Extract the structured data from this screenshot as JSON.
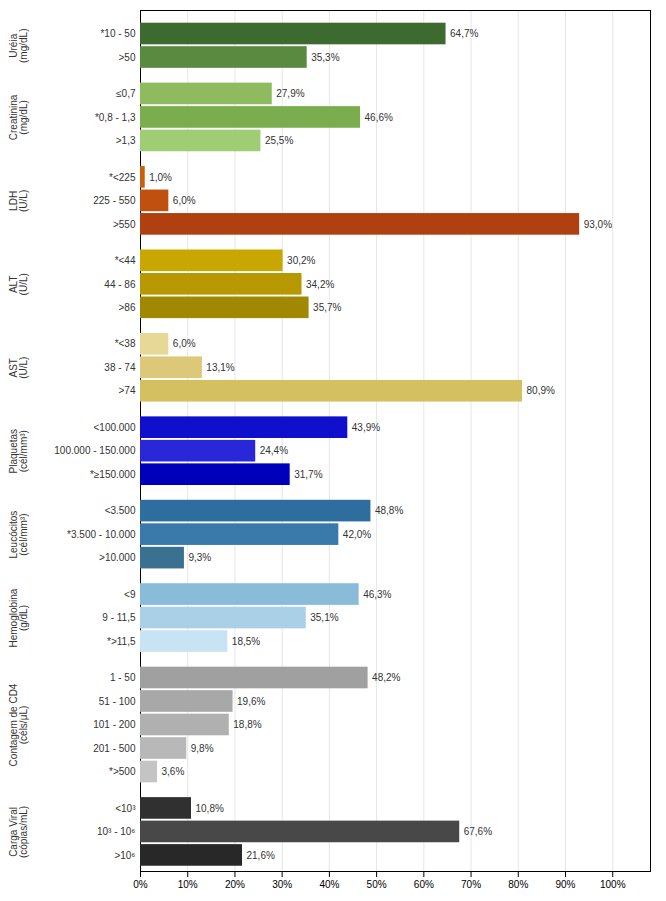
{
  "chart_data": {
    "type": "bar",
    "orientation": "horizontal",
    "data_labels": true,
    "grid": true,
    "xlim": [
      0,
      108
    ],
    "xticks": [
      {
        "value": 0,
        "label": "0%"
      },
      {
        "value": 10,
        "label": "10%"
      },
      {
        "value": 20,
        "label": "20%"
      },
      {
        "value": 30,
        "label": "30%"
      },
      {
        "value": 40,
        "label": "40%"
      },
      {
        "value": 50,
        "label": "50%"
      },
      {
        "value": 60,
        "label": "60%"
      },
      {
        "value": 70,
        "label": "70%"
      },
      {
        "value": 80,
        "label": "80%"
      },
      {
        "value": 90,
        "label": "90%"
      },
      {
        "value": 100,
        "label": "100%"
      }
    ],
    "groups": [
      {
        "label": "Uréia\n(mg/dL)",
        "categories": [
          "*10 - 50",
          ">50"
        ],
        "values": [
          64.7,
          35.3
        ],
        "value_labels": [
          "64,7%",
          "35,3%"
        ],
        "colors": [
          "#3d6b2f",
          "#5a8a40"
        ]
      },
      {
        "label": "Creatinina\n(mg/dL)",
        "categories": [
          "≤0,7",
          "*0,8 - 1,3",
          ">1,3"
        ],
        "values": [
          27.9,
          46.6,
          25.5
        ],
        "value_labels": [
          "27,9%",
          "46,6%",
          "25,5%"
        ],
        "colors": [
          "#8dbb5e",
          "#7aad4e",
          "#a0cc74"
        ]
      },
      {
        "label": "LDH\n(U/L)",
        "categories": [
          "*<225",
          "225 - 550",
          ">550"
        ],
        "values": [
          1.0,
          6.0,
          93.0
        ],
        "value_labels": [
          "1,0%",
          "6,0%",
          "93,0%"
        ],
        "colors": [
          "#c8600a",
          "#c05010",
          "#b04010"
        ]
      },
      {
        "label": "ALT\n(U/L)",
        "categories": [
          "*<44",
          "44 - 86",
          ">86"
        ],
        "values": [
          30.2,
          34.2,
          35.7
        ],
        "value_labels": [
          "30,2%",
          "34,2%",
          "35,7%"
        ],
        "colors": [
          "#c8a800",
          "#b89800",
          "#a08800"
        ]
      },
      {
        "label": "AST\n(U/L)",
        "categories": [
          "*<38",
          "38 - 74",
          ">74"
        ],
        "values": [
          6.0,
          13.1,
          80.9
        ],
        "value_labels": [
          "6,0%",
          "13,1%",
          "80,9%"
        ],
        "colors": [
          "#e8d898",
          "#dcc878",
          "#d4c060"
        ]
      },
      {
        "label": "Plaquetas\n(cél/mm³)",
        "categories": [
          "<100.000",
          "100.000 - 150.000",
          "*≥150.000"
        ],
        "values": [
          43.9,
          24.4,
          31.7
        ],
        "value_labels": [
          "43,9%",
          "24,4%",
          "31,7%"
        ],
        "colors": [
          "#1010cc",
          "#2828d8",
          "#0000bb"
        ]
      },
      {
        "label": "Leucócitos\n(cél/mm³)",
        "categories": [
          "<3.500",
          "*3.500 - 10.000",
          ">10.000"
        ],
        "values": [
          48.8,
          42.0,
          9.3
        ],
        "value_labels": [
          "48,8%",
          "42,0%",
          "9,3%"
        ],
        "colors": [
          "#2e6e9e",
          "#3a7aaa",
          "#3a7090"
        ]
      },
      {
        "label": "Hemoglobina\n(g/dL)",
        "categories": [
          "<9",
          "9 - 11,5",
          "*>11,5"
        ],
        "values": [
          46.3,
          35.1,
          18.5
        ],
        "value_labels": [
          "46,3%",
          "35,1%",
          "18,5%"
        ],
        "colors": [
          "#88bcd8",
          "#aad0e8",
          "#c8e4f4"
        ]
      },
      {
        "label": "Contagem de CD4\n(céls/μL)",
        "categories": [
          "1 - 50",
          "51 - 100",
          "101 - 200",
          "201 - 500",
          "*>500"
        ],
        "values": [
          48.2,
          19.6,
          18.8,
          9.8,
          3.6
        ],
        "value_labels": [
          "48,2%",
          "19,6%",
          "18,8%",
          "9,8%",
          "3,6%"
        ],
        "colors": [
          "#a0a0a0",
          "#a8a8a8",
          "#b0b0b0",
          "#b8b8b8",
          "#c4c4c4"
        ]
      },
      {
        "label": "Carga Viral\n(cópias/mL)",
        "categories": [
          "<10³",
          "10³ - 10⁶",
          ">10⁶"
        ],
        "values": [
          10.8,
          67.6,
          21.6
        ],
        "value_labels": [
          "10,8%",
          "67,6%",
          "21,6%"
        ],
        "colors": [
          "#303030",
          "#484848",
          "#282828"
        ]
      }
    ]
  }
}
